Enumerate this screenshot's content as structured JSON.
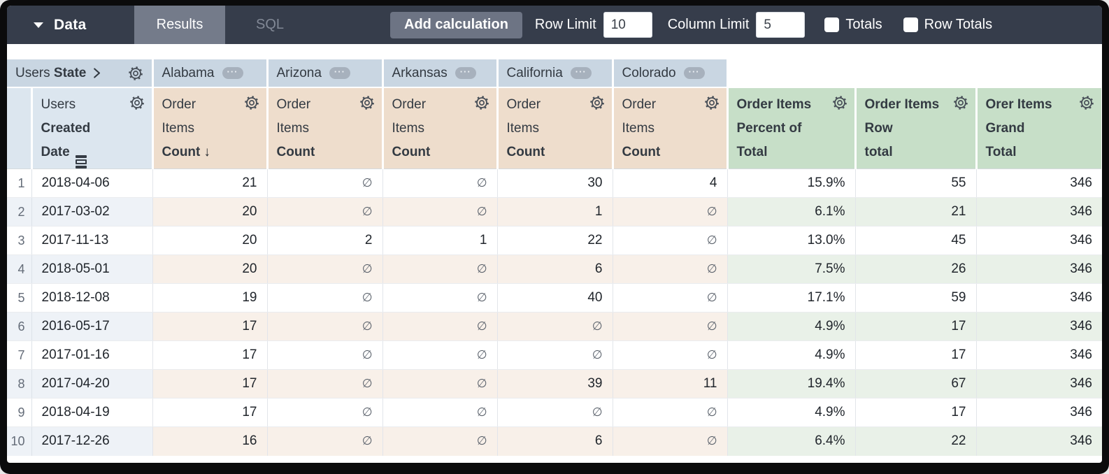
{
  "toolbar": {
    "data_tab_label": "Data",
    "results_tab_label": "Results",
    "sql_tab_label": "SQL",
    "add_calculation_label": "Add calculation",
    "row_limit_label": "Row Limit",
    "row_limit_value": "10",
    "column_limit_label": "Column Limit",
    "column_limit_value": "5",
    "totals_label": "Totals",
    "row_totals_label": "Row Totals",
    "totals_checked": false,
    "row_totals_checked": false
  },
  "icons": {
    "sort_desc": "↓",
    "ellipsis": "···"
  },
  "colors": {
    "toolbar_bg": "#363d4b",
    "active_tab_bg": "#747b8a",
    "pivot_header_bg": "#c9d6e2",
    "dimension_header_bg": "#dce6ef",
    "measure_header_bg": "#eeddcc",
    "calc_header_bg": "#c7dfc8",
    "even_row_dim_tint": "#eef2f7",
    "even_row_measure_tint": "#f8f0e9",
    "even_row_calc_tint": "#e9f1e8"
  },
  "table": {
    "pivot_header": {
      "view": "Users",
      "field": "State",
      "values": [
        "Alabama",
        "Arizona",
        "Arkansas",
        "California",
        "Colorado"
      ]
    },
    "row_dimension": {
      "view": "Users",
      "line2": "Created",
      "line3": "Date"
    },
    "measure_columns": [
      {
        "line1": "Order",
        "line2": "Items",
        "line3": "Count",
        "sorted": true
      },
      {
        "line1": "Order",
        "line2": "Items",
        "line3": "Count",
        "sorted": false
      },
      {
        "line1": "Order",
        "line2": "Items",
        "line3": "Count",
        "sorted": false
      },
      {
        "line1": "Order",
        "line2": "Items",
        "line3": "Count",
        "sorted": false
      },
      {
        "line1": "Order",
        "line2": "Items",
        "line3": "Count",
        "sorted": false
      }
    ],
    "calc_columns": [
      {
        "line1": "Order Items",
        "line2": "Percent of",
        "line3": "Total"
      },
      {
        "line1": "Order Items",
        "line2": "Row",
        "line3": "total"
      },
      {
        "line1": "Orer Items",
        "line2": "Grand",
        "line3": "Total"
      }
    ],
    "null_symbol": "∅",
    "rows": [
      {
        "num": "1",
        "date": "2018-04-06",
        "values": [
          "21",
          "∅",
          "∅",
          "30",
          "4",
          "15.9%",
          "55",
          "346"
        ]
      },
      {
        "num": "2",
        "date": "2017-03-02",
        "values": [
          "20",
          "∅",
          "∅",
          "1",
          "∅",
          "6.1%",
          "21",
          "346"
        ]
      },
      {
        "num": "3",
        "date": "2017-11-13",
        "values": [
          "20",
          "2",
          "1",
          "22",
          "∅",
          "13.0%",
          "45",
          "346"
        ]
      },
      {
        "num": "4",
        "date": "2018-05-01",
        "values": [
          "20",
          "∅",
          "∅",
          "6",
          "∅",
          "7.5%",
          "26",
          "346"
        ]
      },
      {
        "num": "5",
        "date": "2018-12-08",
        "values": [
          "19",
          "∅",
          "∅",
          "40",
          "∅",
          "17.1%",
          "59",
          "346"
        ]
      },
      {
        "num": "6",
        "date": "2016-05-17",
        "values": [
          "17",
          "∅",
          "∅",
          "∅",
          "∅",
          "4.9%",
          "17",
          "346"
        ]
      },
      {
        "num": "7",
        "date": "2017-01-16",
        "values": [
          "17",
          "∅",
          "∅",
          "∅",
          "∅",
          "4.9%",
          "17",
          "346"
        ]
      },
      {
        "num": "8",
        "date": "2017-04-20",
        "values": [
          "17",
          "∅",
          "∅",
          "39",
          "11",
          "19.4%",
          "67",
          "346"
        ]
      },
      {
        "num": "9",
        "date": "2018-04-19",
        "values": [
          "17",
          "∅",
          "∅",
          "∅",
          "∅",
          "4.9%",
          "17",
          "346"
        ]
      },
      {
        "num": "10",
        "date": "2017-12-26",
        "values": [
          "16",
          "∅",
          "∅",
          "6",
          "∅",
          "6.4%",
          "22",
          "346"
        ]
      }
    ]
  }
}
